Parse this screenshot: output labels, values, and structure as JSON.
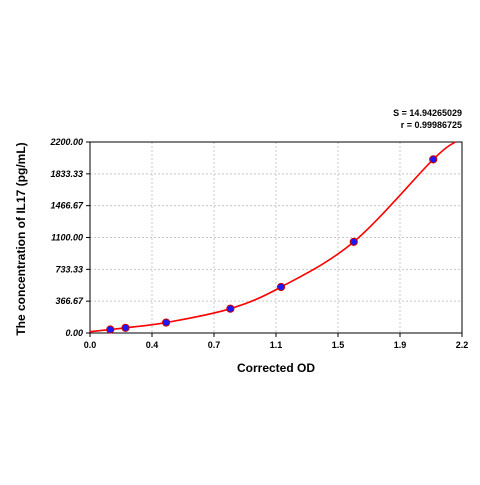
{
  "chart_data": {
    "type": "scatter",
    "xlabel": "Corrected OD",
    "ylabel": "The concentration of IL17 (pg/mL)",
    "xlim": [
      0.0,
      2.2
    ],
    "ylim": [
      0.0,
      2200.0
    ],
    "x_ticks": [
      "0.0",
      "0.4",
      "0.7",
      "1.1",
      "1.5",
      "1.9",
      "2.2"
    ],
    "x_tick_values": [
      0.0,
      0.3667,
      0.7333,
      1.1,
      1.4667,
      1.8333,
      2.2
    ],
    "y_ticks": [
      "0.00",
      "366.67",
      "733.33",
      "1100.00",
      "1466.67",
      "1833.33",
      "2200.00"
    ],
    "y_tick_values": [
      0.0,
      366.67,
      733.33,
      1100.0,
      1466.67,
      1833.33,
      2200.0
    ],
    "grid": true,
    "annotations": [
      "S = 14.94265029",
      "r = 0.99986725"
    ],
    "series": [
      {
        "kind": "points",
        "x": [
          0.12,
          0.21,
          0.45,
          0.83,
          1.13,
          1.56,
          2.03
        ],
        "y": [
          40,
          60,
          120,
          280,
          530,
          1050,
          2000
        ]
      },
      {
        "kind": "fit-curve",
        "x": [
          0.0,
          0.12,
          0.21,
          0.45,
          0.83,
          1.13,
          1.56,
          2.03,
          2.16
        ],
        "y": [
          15,
          40,
          60,
          120,
          280,
          530,
          1050,
          2000,
          2200
        ]
      }
    ],
    "colors": {
      "points": "#1a1aff",
      "points_edge": "#cc0000",
      "curve": "#ff0000",
      "grid": "#c8c8c8"
    }
  }
}
